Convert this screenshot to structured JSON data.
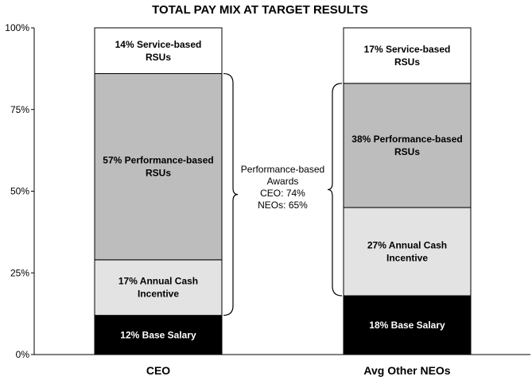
{
  "chart_data": {
    "type": "bar",
    "stacked": true,
    "title": "TOTAL PAY MIX AT TARGET RESULTS",
    "categories": [
      "CEO",
      "Avg Other NEOs"
    ],
    "yticks": [
      "0%",
      "25%",
      "50%",
      "75%",
      "100%"
    ],
    "ylim": [
      0,
      100
    ],
    "series": [
      {
        "key": "base",
        "color": "#000000",
        "text_color": "#ffffff",
        "values": [
          12,
          18
        ],
        "labels": [
          [
            "12% Base Salary"
          ],
          [
            "18% Base Salary"
          ]
        ]
      },
      {
        "key": "annual",
        "color": "#e3e3e3",
        "text_color": "#000000",
        "values": [
          17,
          27
        ],
        "labels": [
          [
            "17% Annual Cash",
            "Incentive"
          ],
          [
            "27% Annual Cash",
            "Incentive"
          ]
        ]
      },
      {
        "key": "perf",
        "color": "#bdbdbd",
        "text_color": "#000000",
        "values": [
          57,
          38
        ],
        "labels": [
          [
            "57% Performance-based",
            "RSUs"
          ],
          [
            "38% Performance-based",
            "RSUs"
          ]
        ]
      },
      {
        "key": "service",
        "color": "#ffffff",
        "text_color": "#000000",
        "values": [
          14,
          17
        ],
        "labels": [
          [
            "14% Service-based",
            "RSUs"
          ],
          [
            "17% Service-based",
            "RSUs"
          ]
        ]
      }
    ],
    "annotation": {
      "lines": [
        "Performance-based",
        "Awards",
        "CEO: 74%",
        "NEOs: 65%"
      ],
      "ranges": [
        [
          12,
          86
        ],
        [
          18,
          83
        ]
      ]
    }
  }
}
